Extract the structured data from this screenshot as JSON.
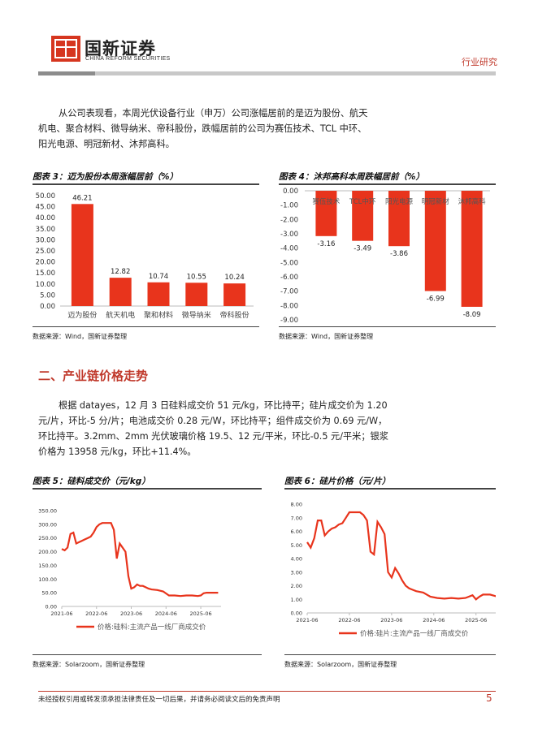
{
  "header": {
    "logo_cn": "国新证券",
    "logo_en": "CHINA REFORM SECURITIES",
    "category": "行业研究"
  },
  "intro_paragraph": [
    "从公司表现看，本周光伏设备行业（申万）公司涨幅居前的是迈为股份、航天",
    "机电、聚合材料、微导纳米、帝科股份，跌幅居前的公司为赛伍技术、TCL 中环、",
    "阳光电源、明冠新材、沐邦高科。"
  ],
  "fig3": {
    "title": "图表 3：迈为股份本周涨幅居前（%）",
    "source": "数据来源：Wind，国新证券整理",
    "chart_data": {
      "type": "bar",
      "categories": [
        "迈为股份",
        "航天机电",
        "聚和材料",
        "微导纳米",
        "帝科股份"
      ],
      "values": [
        46.21,
        12.82,
        10.74,
        10.55,
        10.24
      ],
      "data_labels": [
        "46.21",
        "12.82",
        "10.74",
        "10.55",
        "10.24"
      ],
      "ylim": [
        0,
        50
      ],
      "yticks": [
        "0.00",
        "5.00",
        "10.00",
        "15.00",
        "20.00",
        "25.00",
        "30.00",
        "35.00",
        "40.00",
        "45.00",
        "50.00"
      ],
      "color": "#e8341c"
    }
  },
  "fig4": {
    "title": "图表 4：沐邦高科本周跌幅居前（%）",
    "source": "数据来源：Wind，国新证券整理",
    "chart_data": {
      "type": "bar",
      "categories": [
        "赛伍技术",
        "TCL中环",
        "阳光电源",
        "明冠新材",
        "沐邦高科"
      ],
      "values": [
        -3.16,
        -3.49,
        -3.86,
        -6.99,
        -8.09
      ],
      "data_labels": [
        "-3.16",
        "-3.49",
        "-3.86",
        "-6.99",
        "-8.09"
      ],
      "ylim": [
        -9,
        0
      ],
      "yticks": [
        "0.00",
        "-1.00",
        "-2.00",
        "-3.00",
        "-4.00",
        "-5.00",
        "-6.00",
        "-7.00",
        "-8.00",
        "-9.00"
      ],
      "color": "#e8341c"
    }
  },
  "section2": {
    "title": "二、产业链价格走势",
    "paragraph": [
      "根据 datayes，12 月 3 日硅料成交价 51 元/kg，环比持平；硅片成交价为 1.20",
      "元/片，环比-5 分/片；电池成交价 0.28 元/W，环比持平；组件成交价为 0.69 元/W，",
      "环比持平。3.2mm、2mm 光伏玻璃价格 19.5、12 元/平米，环比-0.5 元/平米；银浆",
      "价格为 13958 元/kg，环比+11.4%。"
    ]
  },
  "fig5": {
    "title": "图表 5：硅料成交价（元/kg）",
    "source": "数据来源：Solarzoom，国新证券整理",
    "chart_data": {
      "type": "line",
      "xticks": [
        "2021-06",
        "2022-06",
        "2023-06",
        "2024-06",
        "2025-06"
      ],
      "yticks": [
        "0.00",
        "50.00",
        "100.00",
        "150.00",
        "200.00",
        "250.00",
        "300.00",
        "350.00"
      ],
      "ylim": [
        0,
        350
      ],
      "xlim": [
        "2021-06",
        "2026-01"
      ],
      "x": [
        "2021-06",
        "2021-07",
        "2021-08",
        "2021-09",
        "2021-10",
        "2021-11",
        "2021-12",
        "2022-01",
        "2022-02",
        "2022-03",
        "2022-04",
        "2022-05",
        "2022-06",
        "2022-07",
        "2022-08",
        "2022-09",
        "2022-10",
        "2022-11",
        "2022-12",
        "2023-01",
        "2023-02",
        "2023-03",
        "2023-04",
        "2023-05",
        "2023-06",
        "2023-07",
        "2023-08",
        "2023-09",
        "2023-10",
        "2023-11",
        "2023-12",
        "2024-01",
        "2024-03",
        "2024-05",
        "2024-07",
        "2024-09",
        "2024-11",
        "2025-01",
        "2025-03",
        "2025-05",
        "2025-06",
        "2025-07",
        "2025-08",
        "2025-10",
        "2025-12"
      ],
      "series": [
        {
          "name": "价格:硅料:主流产品一线厂商成交价",
          "values": [
            210,
            205,
            215,
            265,
            270,
            230,
            235,
            240,
            245,
            250,
            255,
            270,
            290,
            300,
            305,
            305,
            305,
            305,
            280,
            175,
            230,
            215,
            200,
            110,
            65,
            70,
            80,
            75,
            75,
            70,
            65,
            62,
            60,
            55,
            40,
            40,
            38,
            40,
            40,
            38,
            40,
            48,
            50,
            50,
            50
          ],
          "color": "#e8341c"
        }
      ]
    }
  },
  "fig6": {
    "title": "图表 6：硅片价格（元/片）",
    "source": "数据来源：Solarzoom，国新证券整理",
    "chart_data": {
      "type": "line",
      "xticks": [
        "2021-06",
        "2022-06",
        "2023-06",
        "2024-06",
        "2025-06"
      ],
      "yticks": [
        "0.00",
        "1.00",
        "2.00",
        "3.00",
        "4.00",
        "5.00",
        "6.00",
        "7.00",
        "8.00"
      ],
      "ylim": [
        0,
        8
      ],
      "xlim": [
        "2021-06",
        "2026-01"
      ],
      "x": [
        "2021-06",
        "2021-07",
        "2021-08",
        "2021-09",
        "2021-10",
        "2021-11",
        "2021-12",
        "2022-01",
        "2022-02",
        "2022-03",
        "2022-04",
        "2022-05",
        "2022-06",
        "2022-07",
        "2022-08",
        "2022-09",
        "2022-10",
        "2022-11",
        "2022-12",
        "2023-01",
        "2023-02",
        "2023-03",
        "2023-04",
        "2023-05",
        "2023-06",
        "2023-07",
        "2023-08",
        "2023-09",
        "2023-10",
        "2023-11",
        "2023-12",
        "2024-01",
        "2024-03",
        "2024-05",
        "2024-07",
        "2024-09",
        "2024-11",
        "2025-01",
        "2025-03",
        "2025-05",
        "2025-06",
        "2025-07",
        "2025-08",
        "2025-10",
        "2025-12"
      ],
      "series": [
        {
          "name": "价格:硅片:主流产品一线厂商成交价",
          "values": [
            5.2,
            4.8,
            5.5,
            6.8,
            6.8,
            5.7,
            6.0,
            6.2,
            6.3,
            6.5,
            6.6,
            7.0,
            7.4,
            7.4,
            7.4,
            7.4,
            7.2,
            6.8,
            4.5,
            4.3,
            6.7,
            6.3,
            5.8,
            3.0,
            2.6,
            3.3,
            2.9,
            2.4,
            2.0,
            1.8,
            1.7,
            1.6,
            1.5,
            1.2,
            1.1,
            1.05,
            1.1,
            1.05,
            1.1,
            1.3,
            1.0,
            1.2,
            1.35,
            1.35,
            1.2
          ],
          "color": "#e8341c"
        }
      ]
    }
  },
  "footer": {
    "disclaimer": "未经授权引用或转发须承担法律责任及一切后果，并请务必阅读文后的免责声明",
    "page": "5"
  }
}
